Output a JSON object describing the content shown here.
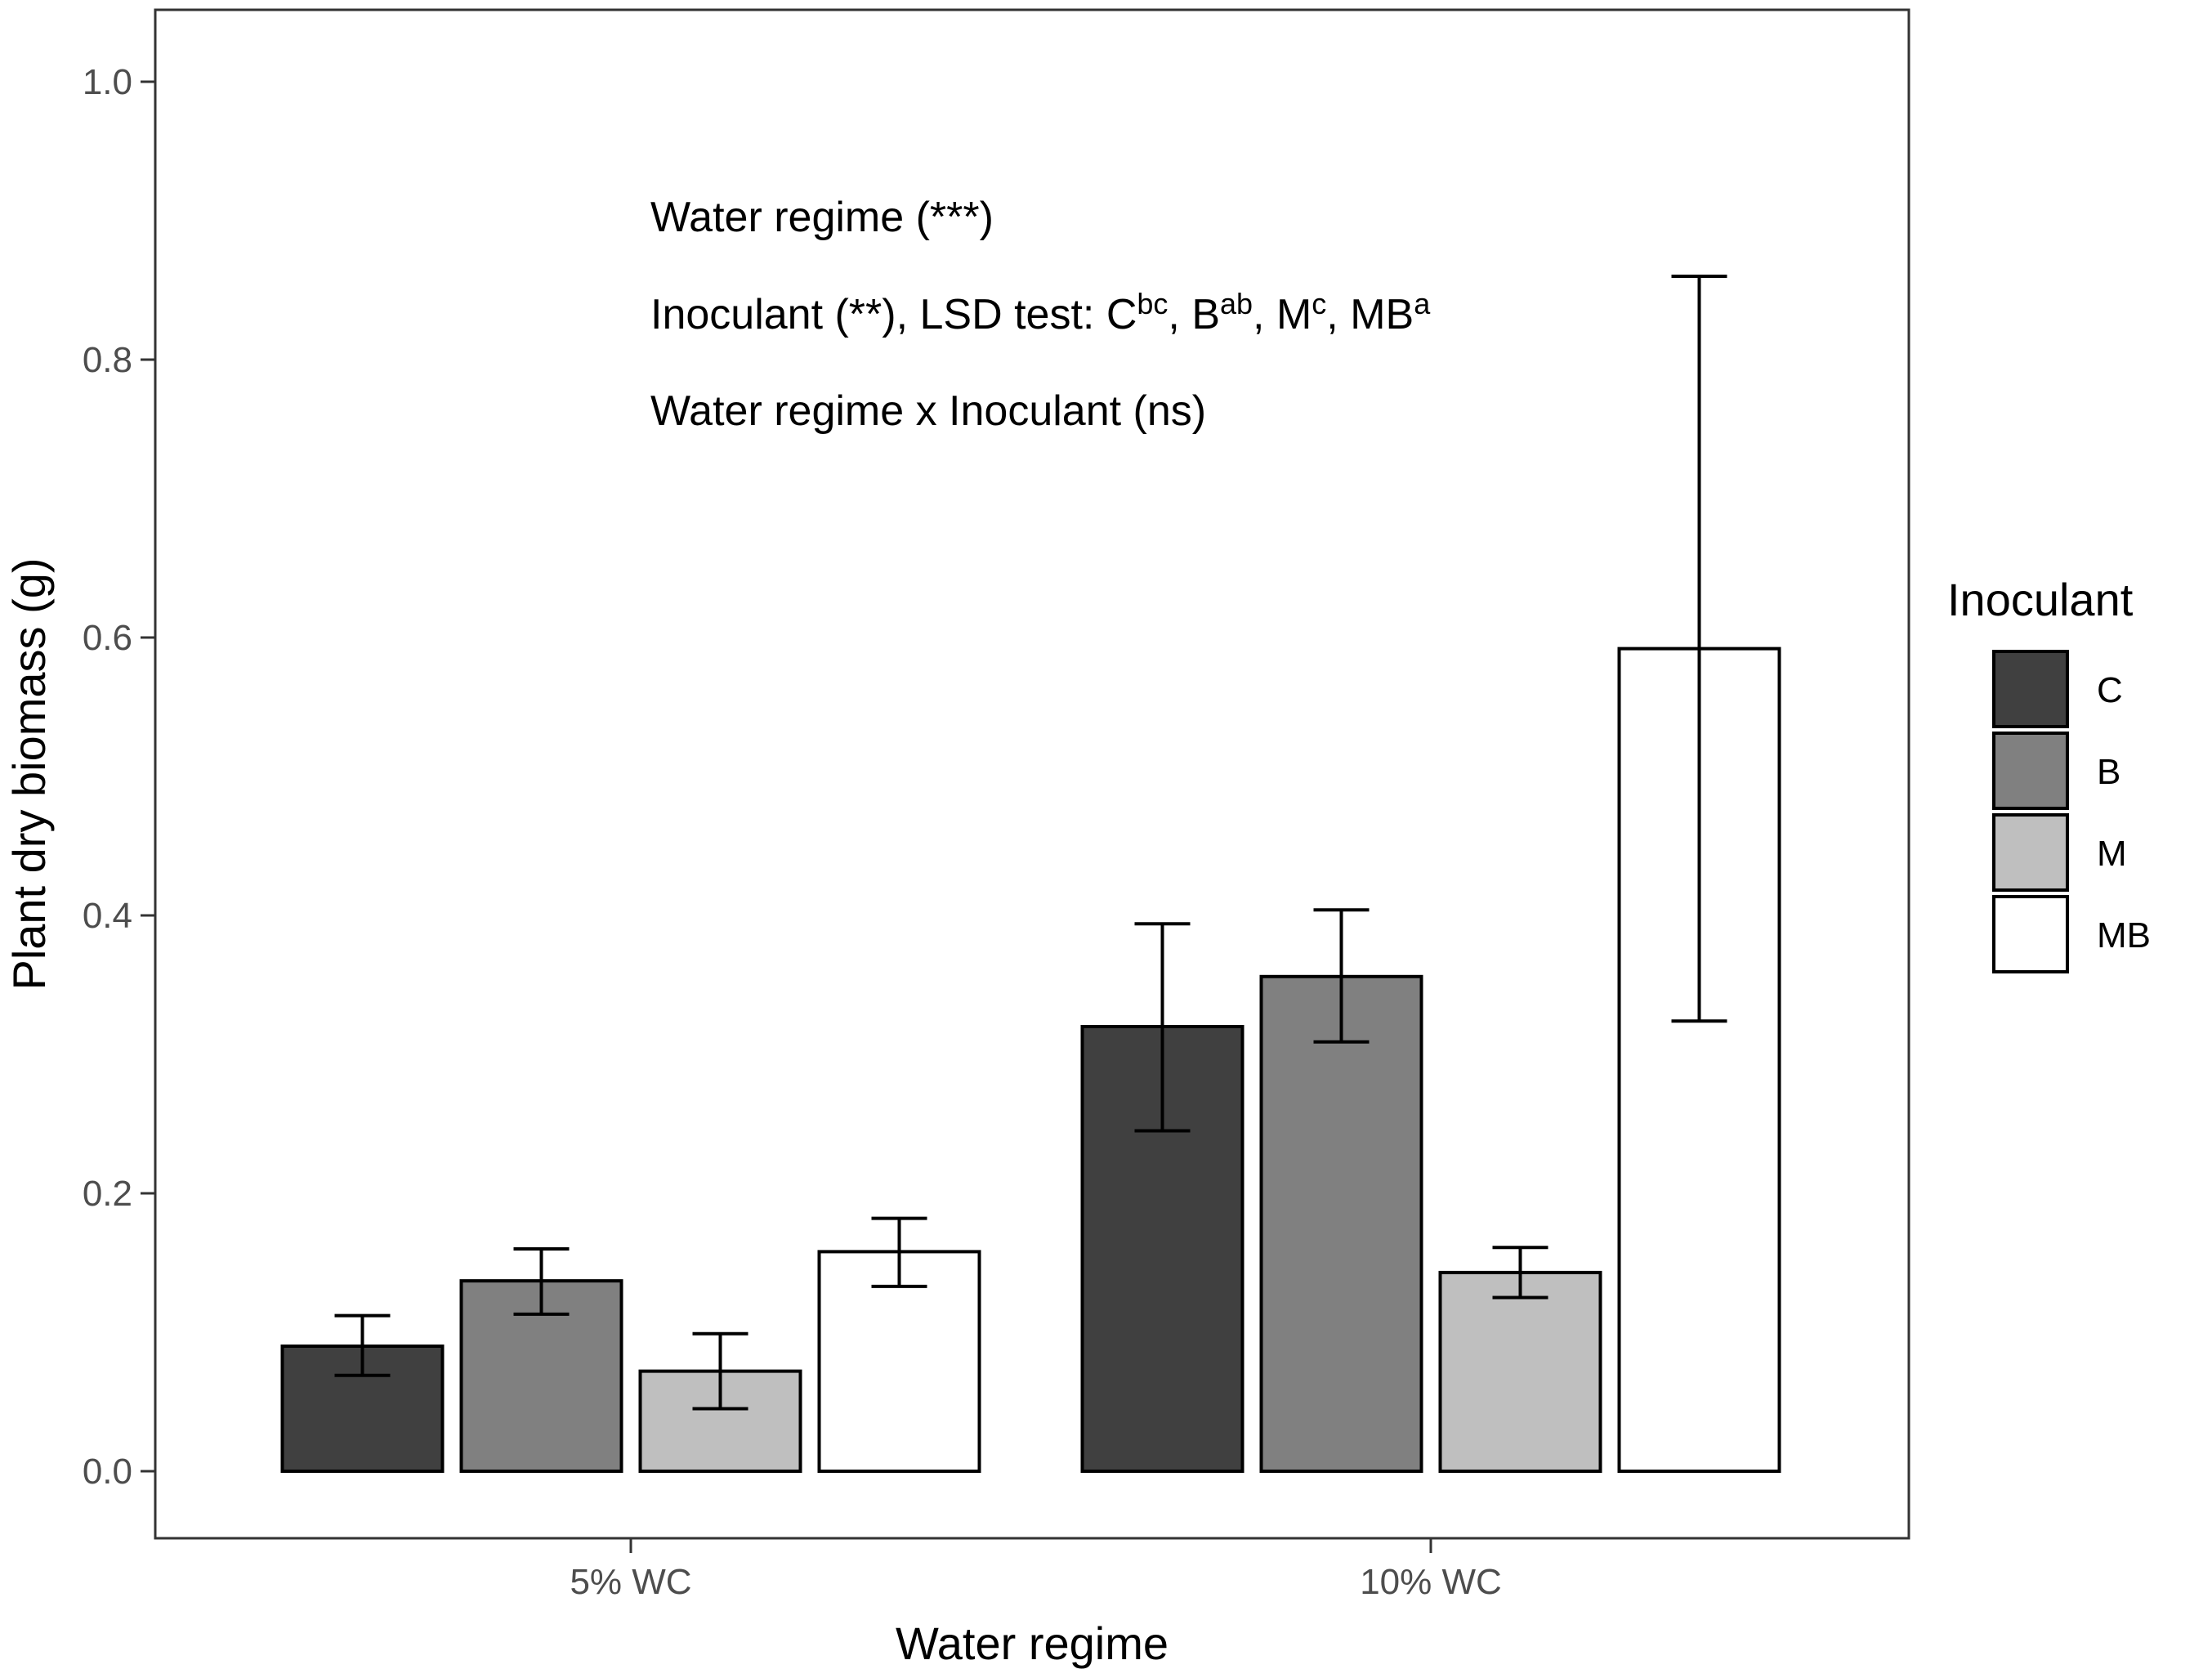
{
  "chart_data": {
    "type": "bar",
    "xlabel": "Water regime",
    "ylabel": "Plant dry biomass (g)",
    "ylim": [
      -0.05,
      1.05
    ],
    "yticks": [
      0.0,
      0.2,
      0.4,
      0.6,
      0.8,
      1.0
    ],
    "ytick_labels": [
      "0.0",
      "0.2",
      "0.4",
      "0.6",
      "0.8",
      "1.0"
    ],
    "grid": false,
    "categories": [
      "5% WC",
      "10% WC"
    ],
    "series": [
      {
        "name": "C",
        "color": "#404040",
        "values": [
          0.09,
          0.32
        ],
        "err_low": [
          0.069,
          0.245
        ],
        "err_high": [
          0.112,
          0.394
        ]
      },
      {
        "name": "B",
        "color": "#808080",
        "values": [
          0.137,
          0.356
        ],
        "err_low": [
          0.113,
          0.309
        ],
        "err_high": [
          0.16,
          0.404
        ]
      },
      {
        "name": "M",
        "color": "#bfbfbf",
        "values": [
          0.072,
          0.143
        ],
        "err_low": [
          0.045,
          0.125
        ],
        "err_high": [
          0.099,
          0.161
        ]
      },
      {
        "name": "MB",
        "color": "#ffffff",
        "values": [
          0.158,
          0.592
        ],
        "err_low": [
          0.133,
          0.324
        ],
        "err_high": [
          0.182,
          0.86
        ]
      }
    ],
    "legend": {
      "title": "Inoculant",
      "position": "right"
    },
    "annotations": {
      "line1": "Water regime (***)",
      "line2_prefix": "Inoculant (**), LSD test: ",
      "lsd": [
        {
          "letter": "C",
          "sup": "bc",
          "sep": ", "
        },
        {
          "letter": "B",
          "sup": "ab",
          "sep": ", "
        },
        {
          "letter": "M",
          "sup": "c",
          "sep": ", "
        },
        {
          "letter": "MB",
          "sup": "a",
          "sep": ""
        }
      ],
      "line3": "Water regime x Inoculant (ns)"
    }
  }
}
